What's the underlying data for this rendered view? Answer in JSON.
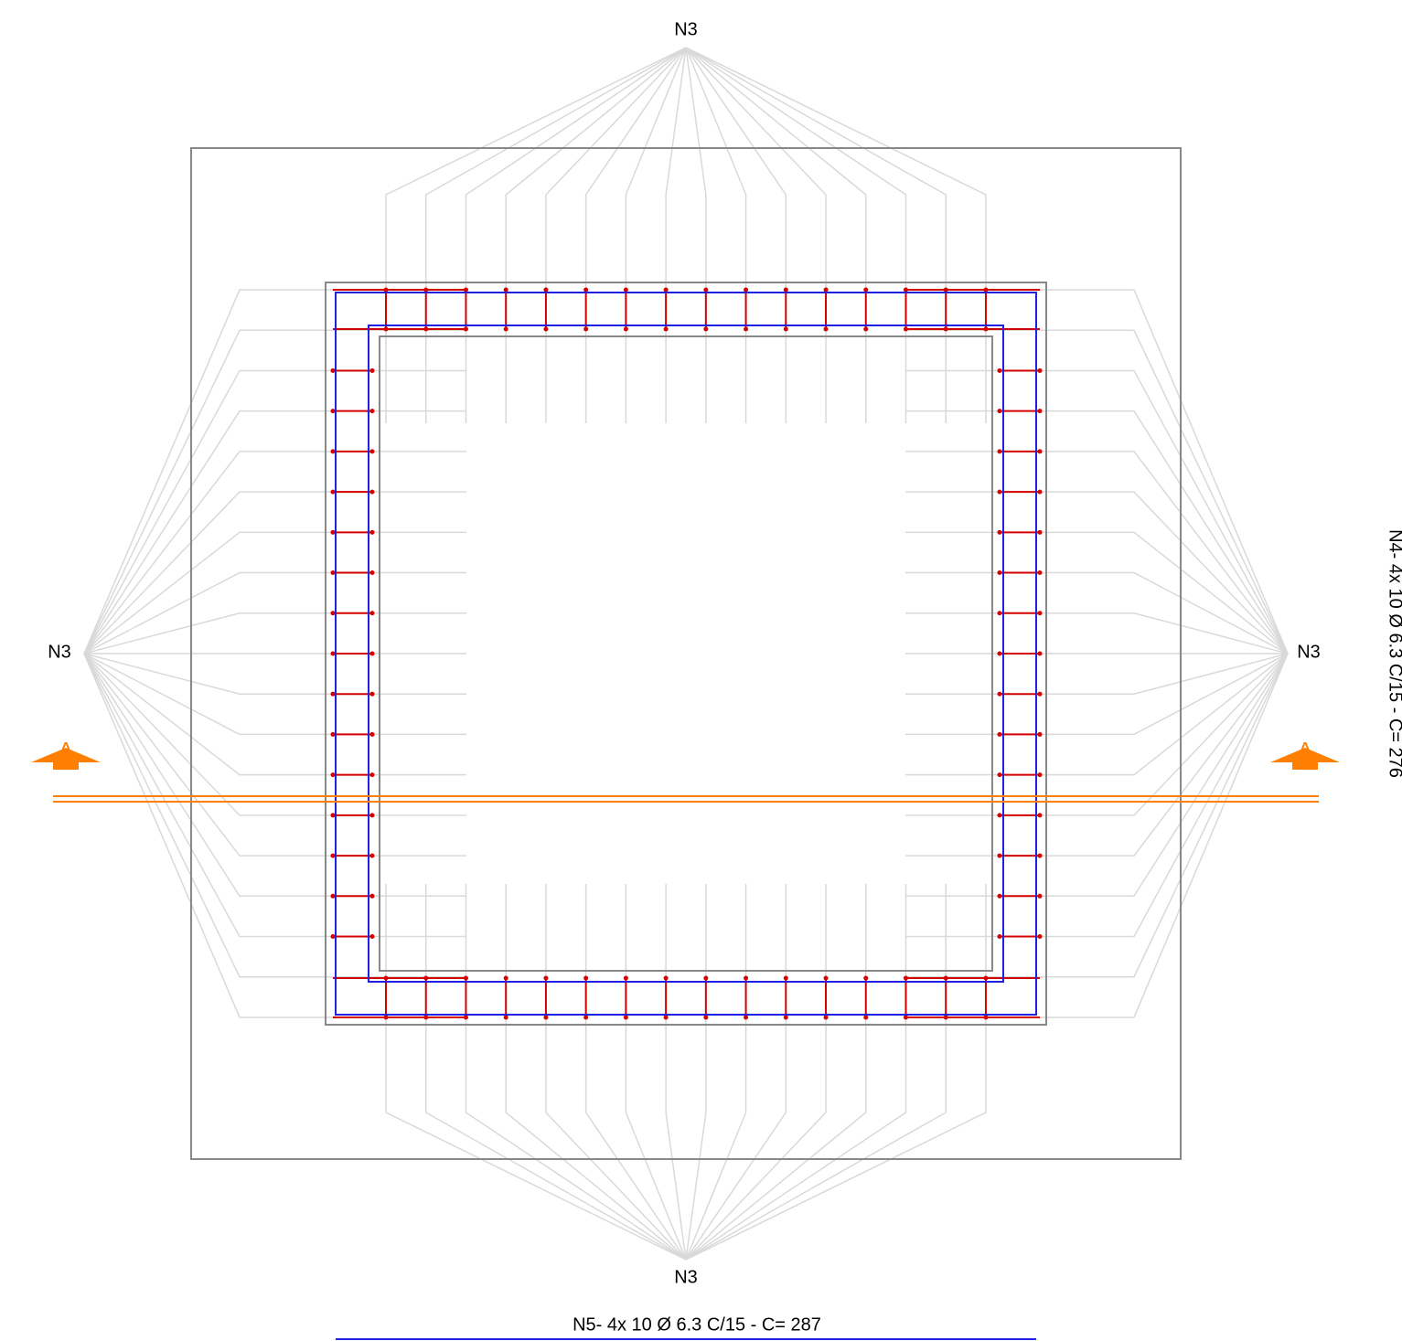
{
  "labels": {
    "top": "N3",
    "bottom": "N3",
    "left": "N3",
    "right": "N3"
  },
  "section": {
    "left": "A",
    "right": "A"
  },
  "notes": {
    "bottom": "N5- 4x 10 Ø 6.3 C/15 - C= 287",
    "right": "N4- 4x 10 Ø 6.3 C/15 - C= 276"
  }
}
